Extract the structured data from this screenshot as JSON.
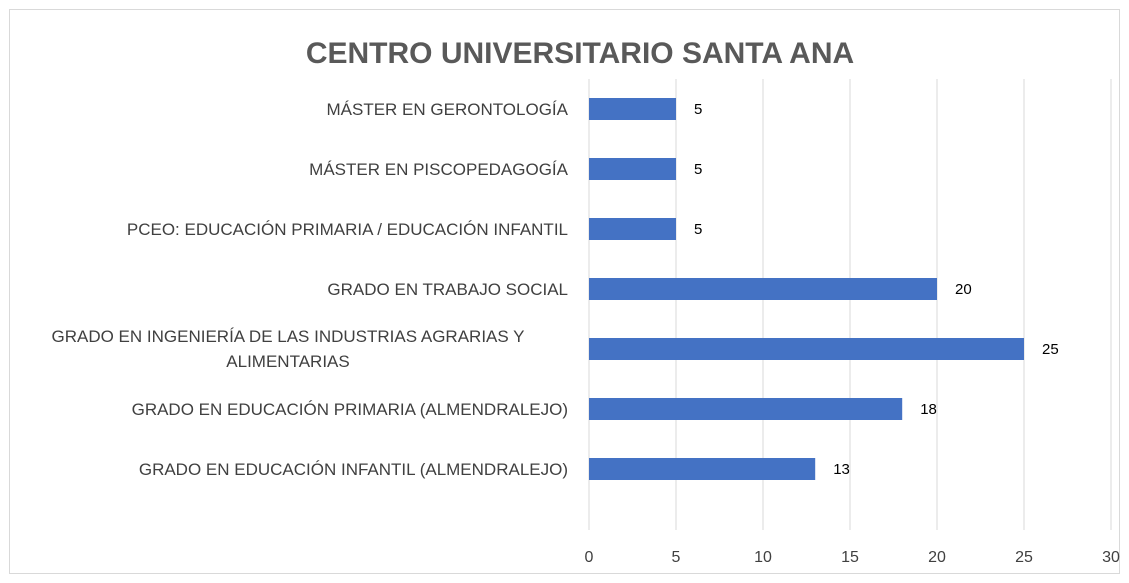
{
  "chart_data": {
    "type": "bar",
    "orientation": "horizontal",
    "title": "CENTRO UNIVERSITARIO SANTA ANA",
    "categories": [
      "MÁSTER EN GERONTOLOGÍA",
      "MÁSTER EN PISCOPEDAGOGÍA",
      "PCEO: EDUCACIÓN PRIMARIA / EDUCACIÓN INFANTIL",
      "GRADO EN TRABAJO SOCIAL",
      "GRADO EN INGENIERÍA DE LAS INDUSTRIAS AGRARIAS Y ALIMENTARIAS",
      "GRADO EN EDUCACIÓN PRIMARIA (ALMENDRALEJO)",
      "GRADO EN EDUCACIÓN INFANTIL (ALMENDRALEJO)"
    ],
    "values": [
      5,
      5,
      5,
      20,
      25,
      18,
      13
    ],
    "color": "#4472c4",
    "xlim": [
      0,
      30
    ],
    "xticks": [
      0,
      5,
      10,
      15,
      20,
      25,
      30
    ],
    "grid": true
  }
}
